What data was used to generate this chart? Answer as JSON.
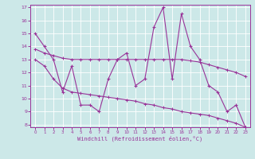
{
  "title": "",
  "xlabel": "Windchill (Refroidissement éolien,°C)",
  "bg_color": "#cce8e8",
  "line_color": "#993399",
  "grid_color": "#ffffff",
  "x_data": [
    0,
    1,
    2,
    3,
    4,
    5,
    6,
    7,
    8,
    9,
    10,
    11,
    12,
    13,
    14,
    15,
    16,
    17,
    18,
    19,
    20,
    21,
    22,
    23
  ],
  "y_main": [
    15,
    14,
    13,
    10.5,
    12.5,
    9.5,
    9.5,
    9.0,
    11.5,
    13.0,
    13.5,
    11.0,
    11.5,
    15.5,
    17.0,
    11.5,
    16.5,
    14.0,
    13.0,
    11.0,
    10.5,
    9.0,
    9.5,
    7.8
  ],
  "y_upper": [
    13.8,
    13.5,
    13.3,
    13.1,
    13.0,
    13.0,
    13.0,
    13.0,
    13.0,
    13.0,
    13.0,
    13.0,
    13.0,
    13.0,
    13.0,
    13.0,
    13.0,
    12.9,
    12.8,
    12.6,
    12.4,
    12.2,
    12.0,
    11.7
  ],
  "y_lower": [
    13.0,
    12.5,
    11.5,
    10.8,
    10.5,
    10.4,
    10.3,
    10.2,
    10.1,
    10.0,
    9.9,
    9.8,
    9.6,
    9.5,
    9.3,
    9.2,
    9.0,
    8.9,
    8.8,
    8.7,
    8.5,
    8.3,
    8.1,
    7.8
  ],
  "ylim": [
    8,
    17
  ],
  "xlim": [
    -0.5,
    23.5
  ],
  "yticks": [
    8,
    9,
    10,
    11,
    12,
    13,
    14,
    15,
    16,
    17
  ],
  "xticks": [
    0,
    1,
    2,
    3,
    4,
    5,
    6,
    7,
    8,
    9,
    10,
    11,
    12,
    13,
    14,
    15,
    16,
    17,
    18,
    19,
    20,
    21,
    22,
    23
  ]
}
